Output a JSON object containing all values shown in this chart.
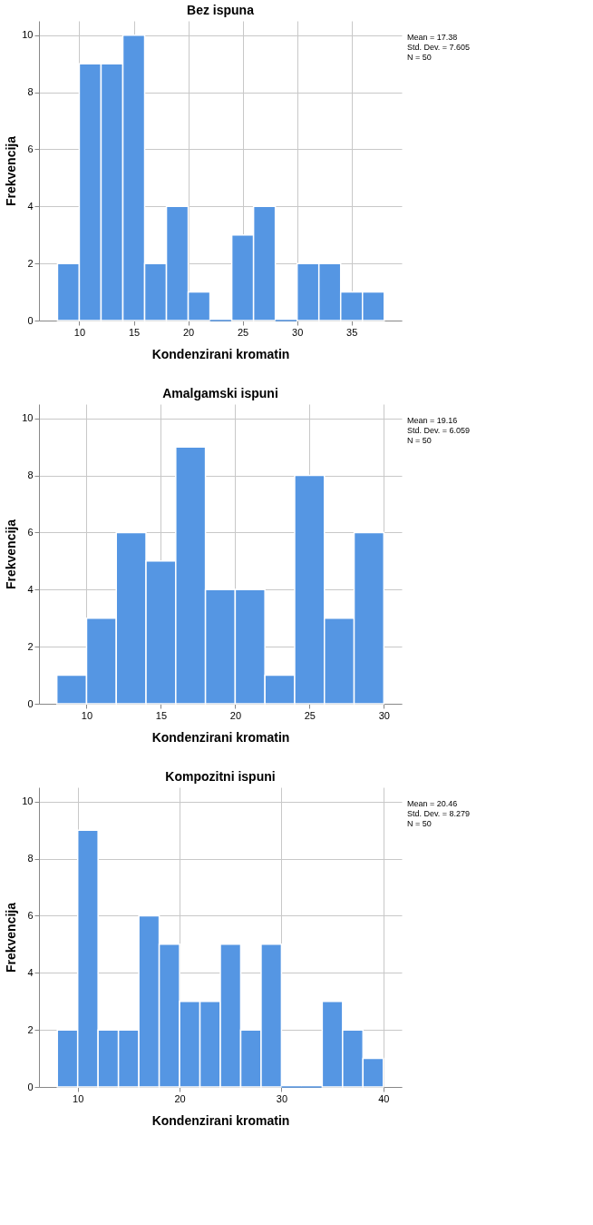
{
  "chart_data": [
    {
      "type": "histogram",
      "title": "Bez ispuna",
      "xlabel": "Kondenzirani kromatin",
      "ylabel": "Frekvencija",
      "color": "#5596e3",
      "bins": [
        8,
        10,
        12,
        14,
        16,
        18,
        20,
        22,
        24,
        26,
        28,
        30,
        32,
        34,
        36,
        38
      ],
      "values": [
        2,
        9,
        9,
        10,
        2,
        4,
        1,
        0,
        3,
        4,
        0,
        2,
        2,
        1,
        1
      ],
      "xlim": [
        6.3,
        39.6
      ],
      "xticks": [
        10,
        15,
        20,
        25,
        30,
        35
      ],
      "ylim": [
        0,
        10.5
      ],
      "yticks": [
        0,
        2,
        4,
        6,
        8,
        10
      ],
      "grid": true,
      "annotations": [
        "Mean = 17.38",
        "Std. Dev. = 7.605",
        "N = 50"
      ]
    },
    {
      "type": "histogram",
      "title": "Amalgamski ispuni",
      "xlabel": "Kondenzirani kromatin",
      "ylabel": "Frekvencija",
      "color": "#5596e3",
      "bins": [
        8,
        10,
        12,
        14,
        16,
        18,
        20,
        22,
        24,
        26,
        28,
        30
      ],
      "values": [
        1,
        3,
        6,
        5,
        9,
        4,
        4,
        1,
        8,
        3,
        6
      ],
      "xlim": [
        6.8,
        31.2
      ],
      "xticks": [
        10,
        15,
        20,
        25,
        30
      ],
      "ylim": [
        0,
        10.5
      ],
      "yticks": [
        0,
        2,
        4,
        6,
        8,
        10
      ],
      "grid": true,
      "annotations": [
        "Mean = 19.16",
        "Std. Dev. = 6.059",
        "N = 50"
      ]
    },
    {
      "type": "histogram",
      "title": "Kompozitni ispuni",
      "xlabel": "Kondenzirani kromatin",
      "ylabel": "Frekvencija",
      "color": "#5596e3",
      "bins": [
        8,
        10,
        12,
        14,
        16,
        18,
        20,
        22,
        24,
        26,
        28,
        30,
        32,
        34,
        36,
        38,
        40
      ],
      "values": [
        2,
        9,
        2,
        2,
        6,
        5,
        3,
        3,
        5,
        2,
        5,
        0,
        0,
        3,
        2,
        1
      ],
      "xlim": [
        6.2,
        41.8
      ],
      "xticks": [
        10,
        20,
        30,
        40
      ],
      "ylim": [
        0,
        10.5
      ],
      "yticks": [
        0,
        2,
        4,
        6,
        8,
        10
      ],
      "grid": true,
      "annotations": [
        "Mean = 20.46",
        "Std. Dev. = 8.279",
        "N = 50"
      ]
    }
  ]
}
